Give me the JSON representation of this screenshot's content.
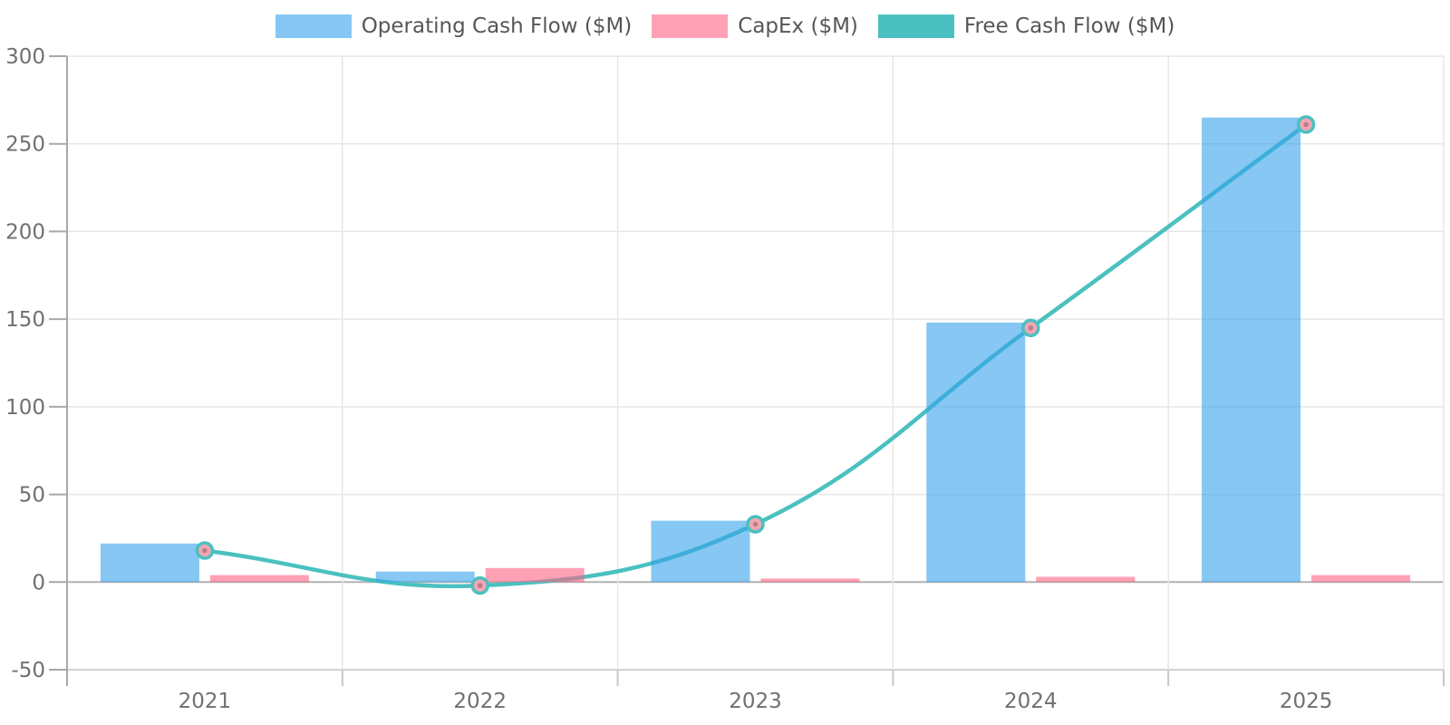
{
  "chart_data": {
    "type": "bar",
    "subtype": "grouped-bars-with-line-overlay",
    "title": "",
    "xlabel": "",
    "ylabel": "",
    "categories": [
      "2021",
      "2022",
      "2023",
      "2024",
      "2025"
    ],
    "series": [
      {
        "name": "Operating Cash Flow ($M)",
        "type": "bar",
        "color": "#36A2EB",
        "values": [
          22,
          6,
          35,
          148,
          265
        ]
      },
      {
        "name": "CapEx ($M)",
        "type": "bar",
        "color": "#FF6384",
        "values": [
          4,
          8,
          2,
          3,
          4
        ]
      },
      {
        "name": "Free Cash Flow ($M)",
        "type": "line",
        "color": "#4BC0C0",
        "values": [
          18,
          -2,
          33,
          145,
          261
        ]
      }
    ],
    "ylim": [
      -50,
      300
    ],
    "yticks": [
      300,
      250,
      200,
      150,
      100,
      50,
      0,
      -50
    ],
    "grid": true,
    "legend_position": "top",
    "colors": {
      "bar_fill_opacity": 0.6,
      "point_fill": "#F2A6B2",
      "point_inner_dot": "#B97F89",
      "axis_line": "#A9A9A9",
      "grid_line": "#E6E6E6",
      "zero_line": "#B2B2B2",
      "bottom_line": "#D2D2D2",
      "tick_label": "#707070",
      "legend_text": "#565656"
    }
  }
}
